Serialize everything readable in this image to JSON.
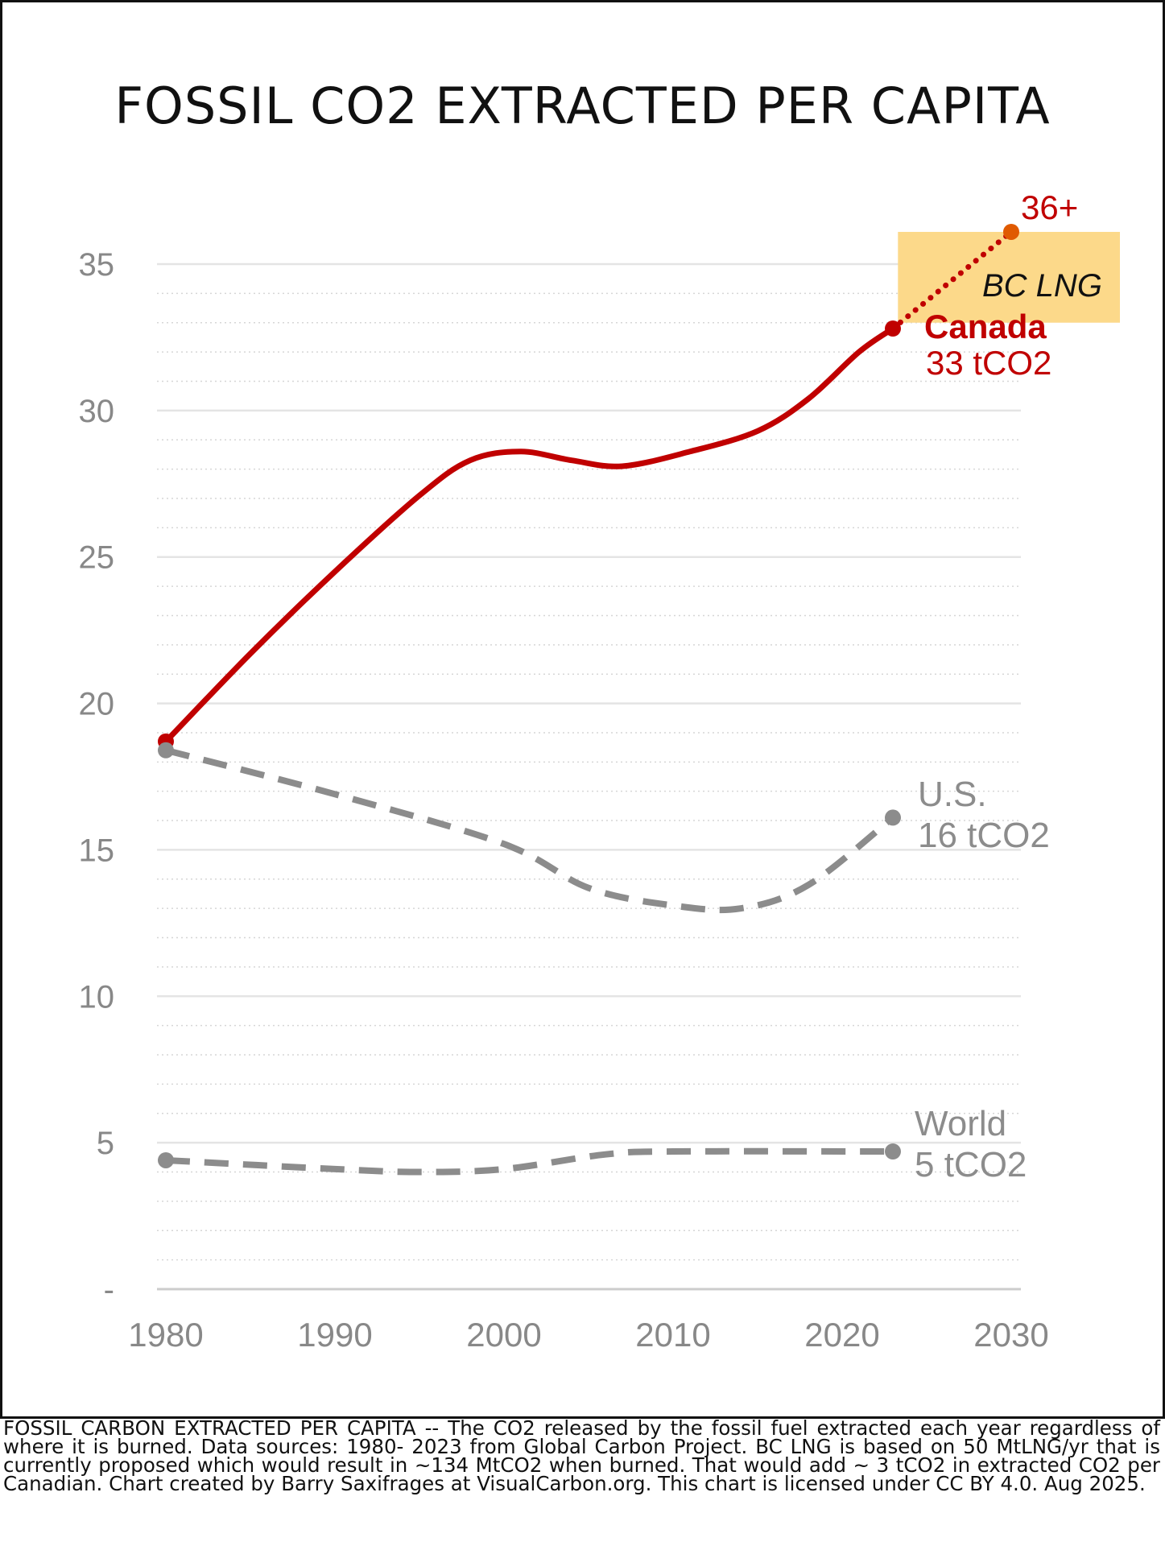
{
  "caption": "FOSSIL CARBON EXTRACTED PER CAPITA -- The CO2 released by the fossil fuel extracted each year regardless of where it is burned. Data sources: 1980- 2023 from Global Carbon Project. BC LNG is based on 50 MtLNG/yr that is currently proposed which would result in ~134 MtCO2 when burned. That would add ~ 3 tCO2 in extracted CO2 per Canadian. Chart created by Barry Saxifrages at VisualCarbon.org. This chart is licensed under CC BY 4.0. Aug 2025.",
  "chart_data": {
    "type": "line",
    "title": "FOSSIL CO2 EXTRACTED PER CAPITA",
    "xlabel": "",
    "ylabel": "",
    "xlim": [
      1980,
      2030
    ],
    "ylim": [
      0,
      35
    ],
    "x_ticks": [
      "1980",
      "1990",
      "2000",
      "2010",
      "2020",
      "2030"
    ],
    "y_ticks": [
      "-",
      "5",
      "10",
      "15",
      "20",
      "25",
      "30",
      "35"
    ],
    "grid": true,
    "colors": {
      "canada": "#c00000",
      "other": "#8c8c8c",
      "projection_box": "#fcd98a",
      "grid": "#e0e0e0"
    },
    "series": [
      {
        "name": "Canada",
        "style": "solid",
        "color": "#c00000",
        "points": [
          [
            1980,
            18.7
          ],
          [
            1985,
            21.7
          ],
          [
            1990,
            24.5
          ],
          [
            1995,
            27.1
          ],
          [
            1998,
            28.3
          ],
          [
            2001,
            28.6
          ],
          [
            2004,
            28.3
          ],
          [
            2007,
            28.1
          ],
          [
            2011,
            28.6
          ],
          [
            2015,
            29.3
          ],
          [
            2018,
            30.4
          ],
          [
            2021,
            32.0
          ],
          [
            2023,
            32.8
          ]
        ],
        "end_label": [
          "Canada",
          "33 tCO2"
        ]
      },
      {
        "name": "U.S.",
        "style": "dashed",
        "color": "#8c8c8c",
        "points": [
          [
            1980,
            18.4
          ],
          [
            1990,
            16.9
          ],
          [
            2000,
            15.2
          ],
          [
            2005,
            13.7
          ],
          [
            2010,
            13.1
          ],
          [
            2014,
            13.0
          ],
          [
            2018,
            13.8
          ],
          [
            2023,
            16.1
          ]
        ],
        "end_label": [
          "U.S.",
          "16 tCO2"
        ]
      },
      {
        "name": "World",
        "style": "dashed",
        "color": "#8c8c8c",
        "points": [
          [
            1980,
            4.4
          ],
          [
            1990,
            4.1
          ],
          [
            1995,
            4.0
          ],
          [
            2000,
            4.1
          ],
          [
            2006,
            4.6
          ],
          [
            2010,
            4.7
          ],
          [
            2023,
            4.7
          ]
        ],
        "end_label": [
          "World",
          "5 tCO2"
        ]
      }
    ],
    "projection": {
      "name": "BC LNG",
      "style": "dotted",
      "color": "#c00000",
      "points": [
        [
          2023,
          32.8
        ],
        [
          2030,
          36.1
        ]
      ],
      "label": "BC LNG",
      "end_label": "36+"
    }
  }
}
